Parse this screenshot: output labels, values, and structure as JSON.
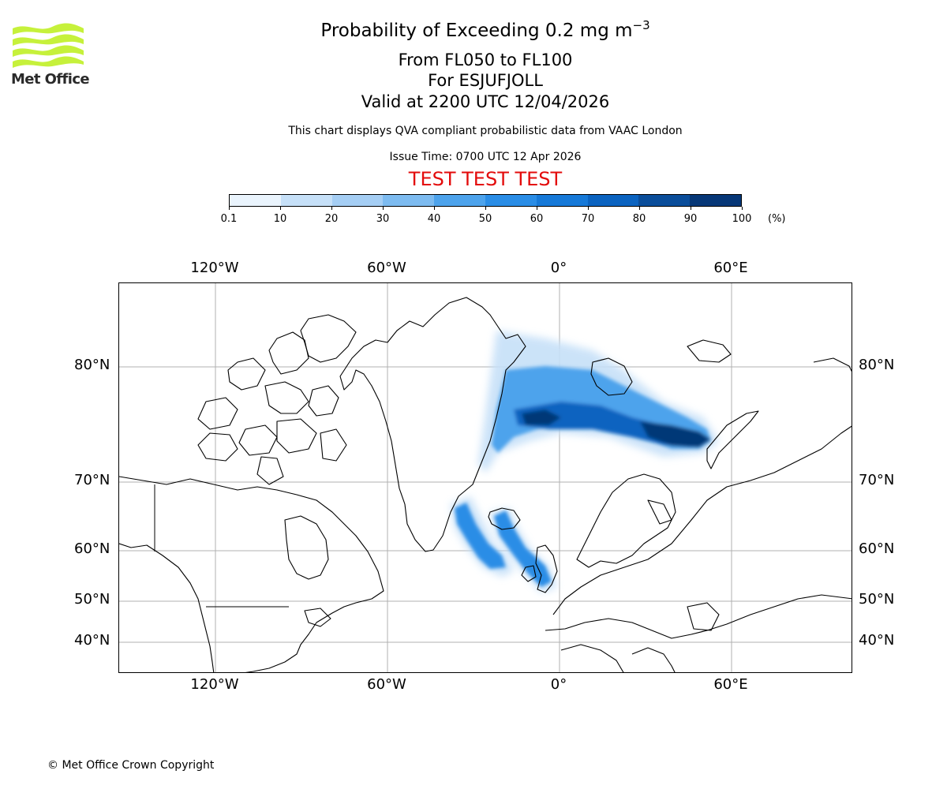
{
  "header": {
    "title_main": "Probability of Exceeding 0.2 mg m",
    "title_exp": "−3",
    "subtitle_levels": "From FL050 to FL100",
    "subtitle_volcano": "For ESJUFJOLL",
    "subtitle_valid": "Valid at 2200 UTC 12/04/2026",
    "note": "This chart displays QVA compliant probabilistic data from VAAC London",
    "issue_time": "Issue Time: 0700 UTC 12 Apr 2026",
    "test_banner": "TEST TEST TEST"
  },
  "logo": {
    "text": "Met Office"
  },
  "colorbar": {
    "ticks": [
      "0.1",
      "10",
      "20",
      "30",
      "40",
      "50",
      "60",
      "70",
      "80",
      "90",
      "100"
    ],
    "unit": "(%)",
    "colors": [
      "#eaf4fd",
      "#c6e0f8",
      "#a5cef4",
      "#7dbbf0",
      "#4da3ec",
      "#2a8de6",
      "#1679d8",
      "#0b63c0",
      "#0a4d9a",
      "#063777",
      "#04244f"
    ]
  },
  "map": {
    "lon_labels_top": [
      "120°W",
      "60°W",
      "0°",
      "60°E"
    ],
    "lon_labels_bottom": [
      "120°W",
      "60°W",
      "0°",
      "60°E"
    ],
    "lat_labels_left": [
      "80°N",
      "70°N",
      "60°N",
      "50°N",
      "40°N"
    ],
    "lat_labels_right": [
      "80°N",
      "70°N",
      "60°N",
      "50°N",
      "40°N"
    ]
  },
  "footer": {
    "copyright": "© Met Office Crown Copyright"
  }
}
